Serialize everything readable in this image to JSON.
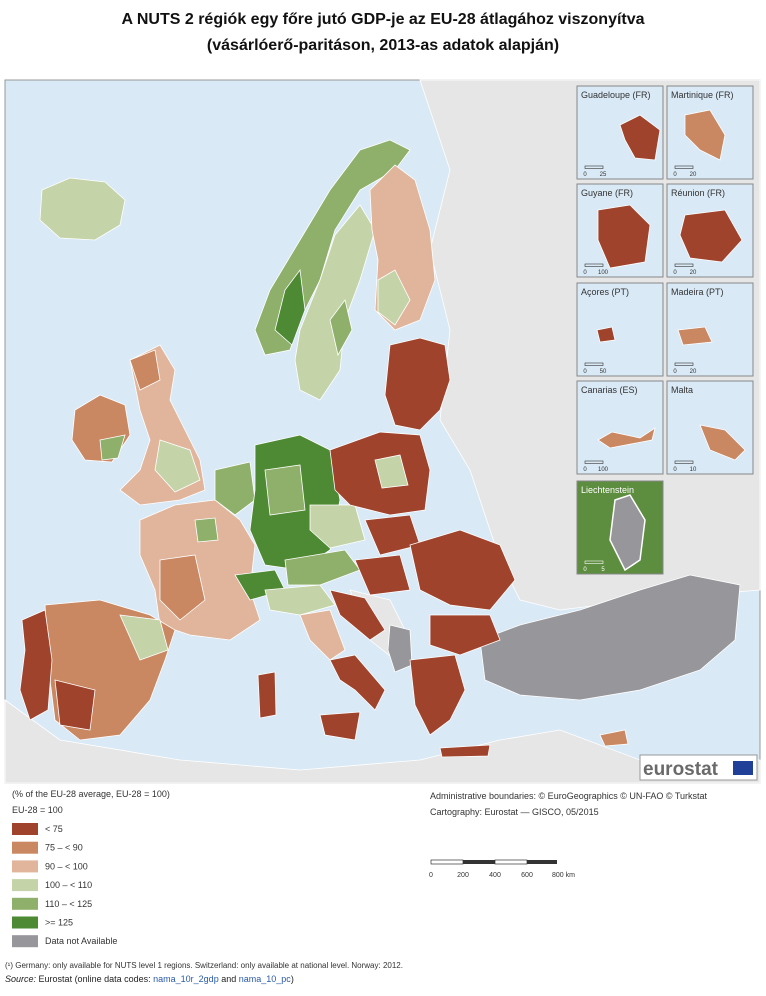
{
  "title": [
    "A NUTS 2 régiók egy főre jutó GDP-je az EU-28 átlagához viszonyítva",
    "(vásárlóerő-paritáson, 2013-as adatok alapján)"
  ],
  "insets": [
    {
      "label": "Guadeloupe (FR)",
      "scale": [
        "0",
        "25"
      ]
    },
    {
      "label": "Martinique (FR)",
      "scale": [
        "0",
        "20"
      ]
    },
    {
      "label": "Guyane (FR)",
      "scale": [
        "0",
        "100"
      ]
    },
    {
      "label": "Réunion (FR)",
      "scale": [
        "0",
        "20"
      ]
    },
    {
      "label": "Açores (PT)",
      "scale": [
        "0",
        "50"
      ]
    },
    {
      "label": "Madeira (PT)",
      "scale": [
        "0",
        "20"
      ]
    },
    {
      "label": "Canarias (ES)",
      "scale": [
        "0",
        "100"
      ]
    },
    {
      "label": "Malta",
      "scale": [
        "0",
        "10"
      ]
    },
    {
      "label": "Liechtenstein",
      "scale": [
        "0",
        "5"
      ]
    }
  ],
  "logo": "eurostat",
  "legend": {
    "title": "(% of the EU-28 average, EU-28 = 100)",
    "subtitle": "EU-28 = 100",
    "items": [
      {
        "label": "< 75",
        "color": "#a0432c"
      },
      {
        "label": "75 – < 90",
        "color": "#c98762"
      },
      {
        "label": "90 – < 100",
        "color": "#e0b59c"
      },
      {
        "label": "100 – < 110",
        "color": "#c5d4a8"
      },
      {
        "label": "110 – < 125",
        "color": "#8fb06b"
      },
      {
        "label": ">= 125",
        "color": "#4e8a33"
      },
      {
        "label": "Data not Available",
        "color": "#96969b"
      }
    ]
  },
  "credits": [
    "Administrative boundaries: © EuroGeographics © UN-FAO © Turkstat",
    "Cartography: Eurostat — GISCO, 05/2015"
  ],
  "scale_bar": [
    "0",
    "200",
    "400",
    "600",
    "800 km"
  ],
  "footnote": "(¹)  Germany: only available for NUTS level 1 regions. Switzerland: only available at national level. Norway: 2012.",
  "source": {
    "label": "Source:",
    "text": "Eurostat (online data codes:",
    "links": [
      "nama_10r_2gdp",
      "nama_10_pc"
    ],
    "joiner": "and",
    "end": ")"
  }
}
